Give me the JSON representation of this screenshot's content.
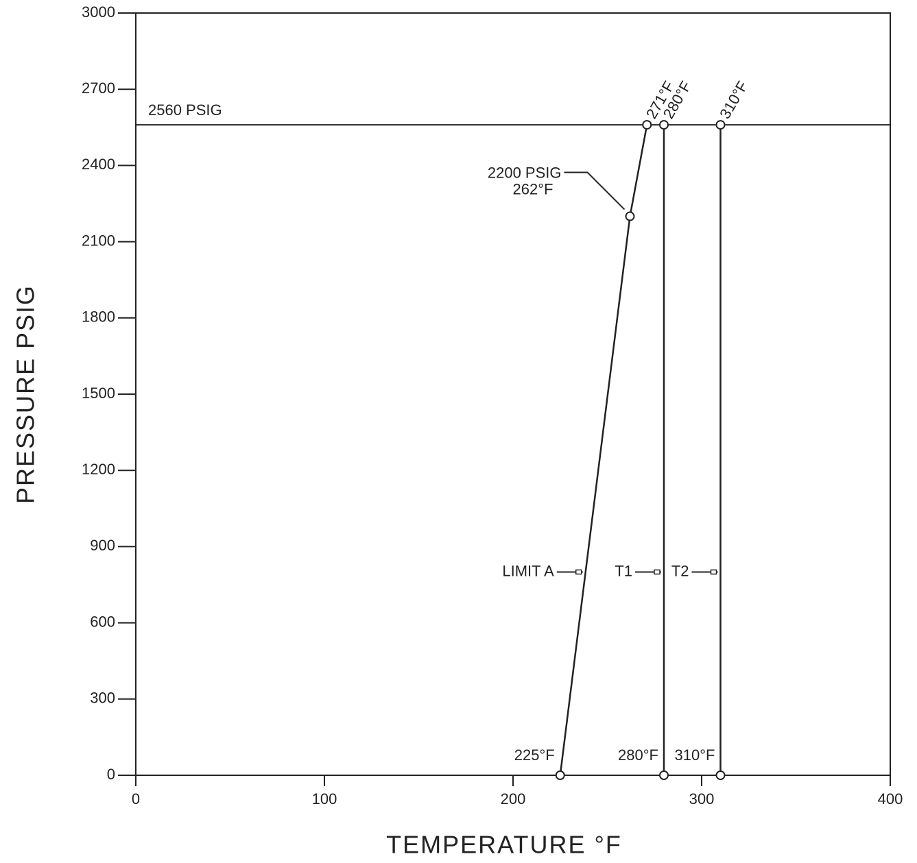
{
  "chart_data": {
    "type": "line",
    "xlabel": "TEMPERATURE °F",
    "ylabel": "PRESSURE PSIG",
    "xlim": [
      0,
      400
    ],
    "ylim": [
      0,
      3000
    ],
    "xticks": [
      0,
      100,
      200,
      300,
      400
    ],
    "yticks": [
      0,
      300,
      600,
      900,
      1200,
      1500,
      1800,
      2100,
      2400,
      2700,
      3000
    ],
    "grid": false,
    "reference_line": {
      "value": 2560,
      "label": "2560 PSIG"
    },
    "annotations": [
      {
        "text": "2200 PSIG"
      },
      {
        "text": "262°F"
      }
    ],
    "name_label_pressure": 800,
    "series": [
      {
        "name": "LIMIT A",
        "color": "#222222",
        "x": [
          225,
          262,
          271
        ],
        "values": [
          0,
          2200,
          2560
        ],
        "x_labels": [
          "225°F",
          null,
          "271°F"
        ]
      },
      {
        "name": "T1",
        "color": "#222222",
        "x": [
          280,
          280
        ],
        "values": [
          0,
          2560
        ],
        "x_labels": [
          "280°F",
          "280°F"
        ]
      },
      {
        "name": "T2",
        "color": "#222222",
        "x": [
          310,
          310
        ],
        "values": [
          0,
          2560
        ],
        "x_labels": [
          "310°F",
          "310°F"
        ]
      }
    ]
  }
}
